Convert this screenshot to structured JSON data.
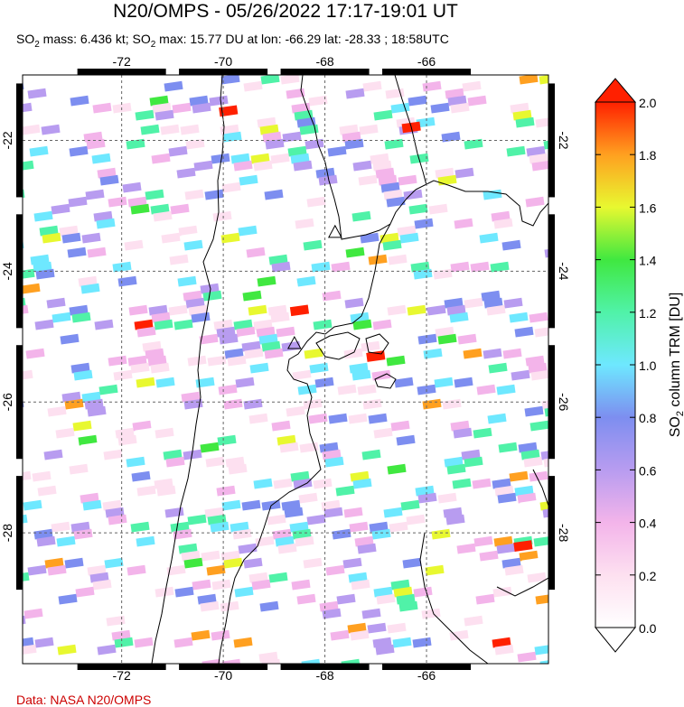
{
  "title": "N20/OMPS - 05/26/2022 17:17-19:01 UT",
  "subtitle": {
    "mass_label": "SO",
    "mass_sub": "2",
    "mass_text": " mass: 6.436 kt; SO",
    "max_sub": "2",
    "max_text": " max: 15.77 DU at lon: -66.29 lat: -28.33 ; 18:58UTC"
  },
  "credit": "Data: NASA N20/OMPS",
  "colorbar": {
    "label_prefix": "SO",
    "label_sub": "2",
    "label_suffix": " column TRM [DU]",
    "ticks": [
      "0.0",
      "0.2",
      "0.4",
      "0.6",
      "0.8",
      "1.0",
      "1.2",
      "1.4",
      "1.6",
      "1.8",
      "2.0"
    ],
    "colors": [
      "#ffffff",
      "#fde0f0",
      "#f3b4ea",
      "#b89cf0",
      "#7d8ef0",
      "#6ee8ff",
      "#50f2a8",
      "#40e840",
      "#e8f830",
      "#ffa020",
      "#ff2000"
    ]
  },
  "chart_data": {
    "type": "heatmap",
    "x_ticks": [
      "-72",
      "-70",
      "-68",
      "-66"
    ],
    "y_ticks": [
      "-22",
      "-24",
      "-26",
      "-28"
    ],
    "xlim": [
      -73.95,
      -63.6
    ],
    "ylim": [
      -30.0,
      -21.0
    ],
    "vmin": 0.0,
    "vmax": 2.0,
    "grid": true,
    "volcano_markers": [
      {
        "lon": -67.8,
        "lat": -23.4
      },
      {
        "lon": -68.6,
        "lat": -25.1
      }
    ],
    "hotspots": [
      {
        "lon": -69.9,
        "lat": -21.55,
        "value": 2.0
      },
      {
        "lon": -68.5,
        "lat": -24.6,
        "value": 2.0
      },
      {
        "lon": -67.0,
        "lat": -25.3,
        "value": 2.0
      },
      {
        "lon": -66.3,
        "lat": -21.8,
        "value": 2.0
      },
      {
        "lon": -64.1,
        "lat": -28.2,
        "value": 1.9
      }
    ]
  }
}
